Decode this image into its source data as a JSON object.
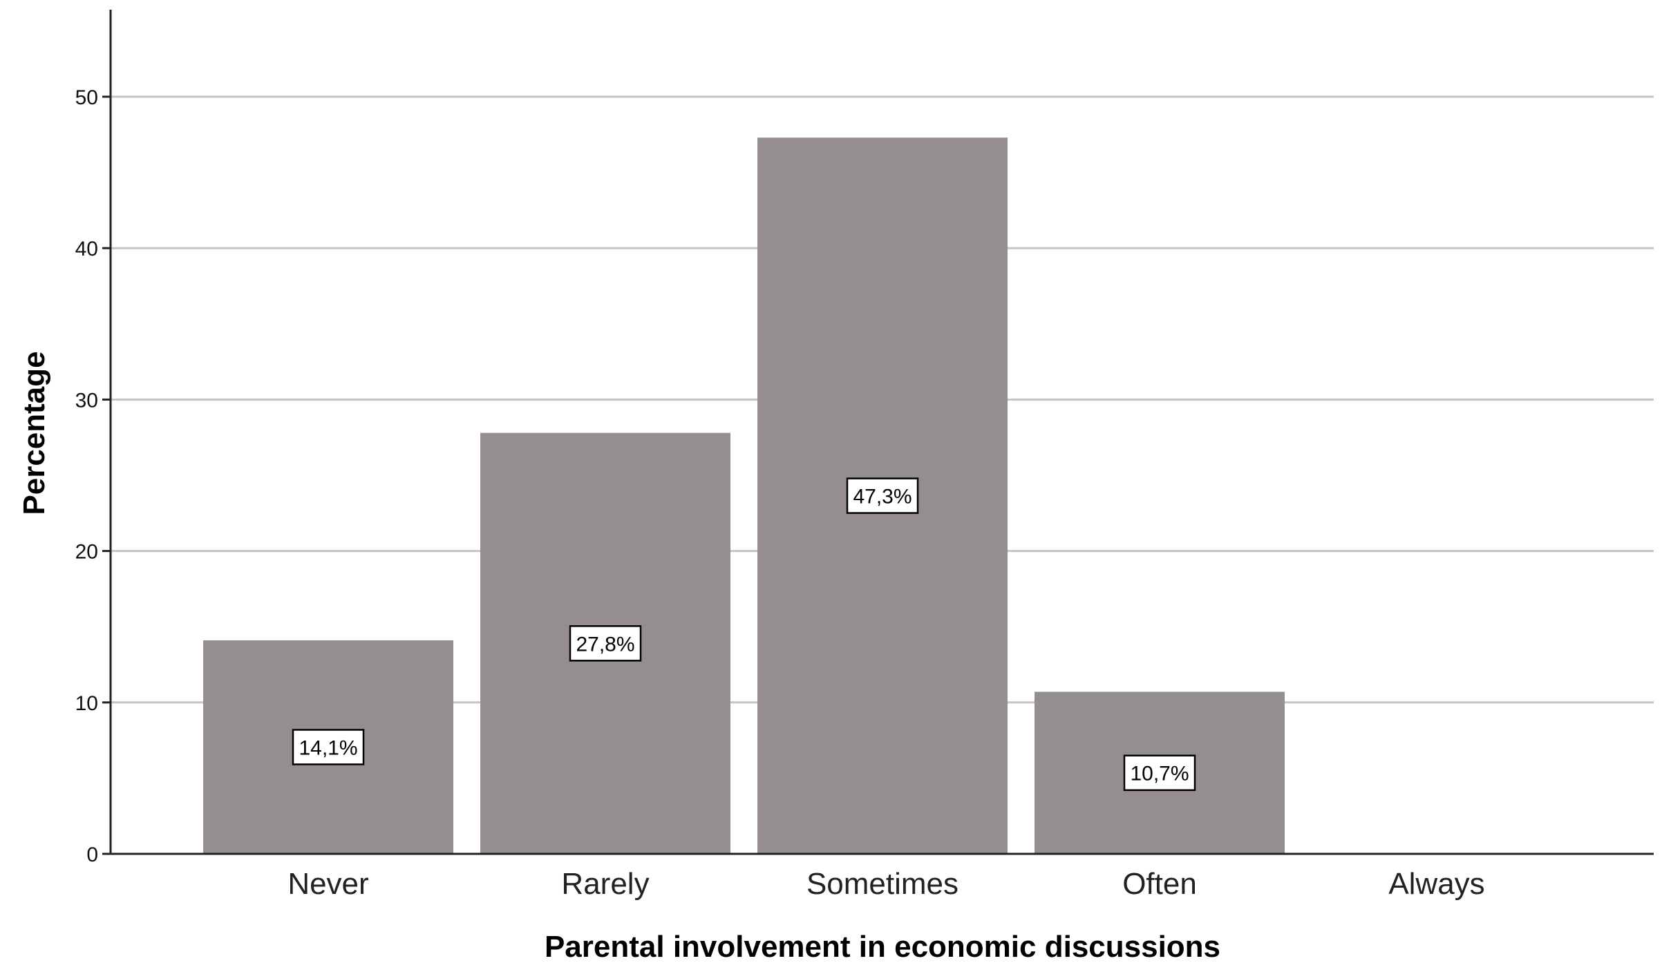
{
  "chart_data": {
    "type": "bar",
    "categories": [
      "Never",
      "Rarely",
      "Sometimes",
      "Often",
      "Always"
    ],
    "values": [
      14.1,
      27.8,
      47.3,
      10.7,
      0
    ],
    "data_labels": [
      "14,1%",
      "27,8%",
      "47,3%",
      "10,7%",
      ""
    ],
    "yticks": [
      "0",
      "10",
      "20",
      "30",
      "40",
      "50"
    ],
    "ytick_values": [
      0,
      10,
      20,
      30,
      40,
      50
    ],
    "xlabel": "Parental involvement in economic discussions",
    "ylabel": "Percentage",
    "ylim": [
      0,
      55
    ],
    "grid": true,
    "colors": {
      "bar": "#948f8e"
    }
  }
}
